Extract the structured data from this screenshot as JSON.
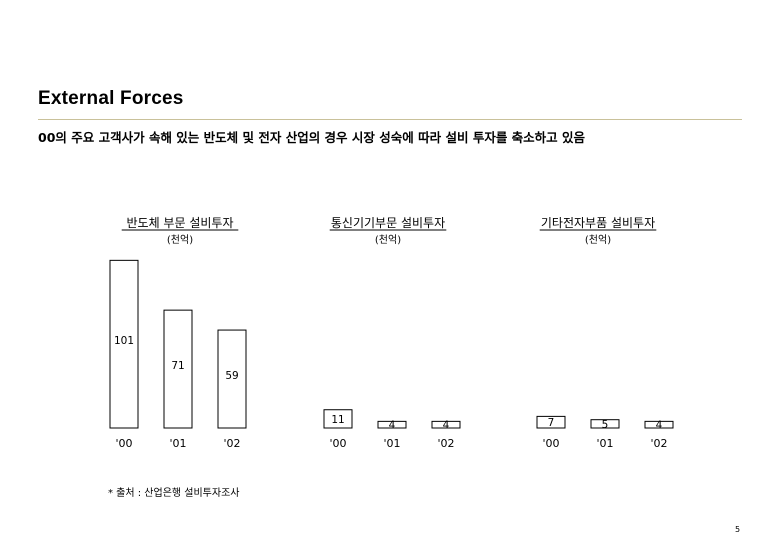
{
  "header": {
    "title": "External Forces",
    "subtitle": "00의 주요 고객사가 속해 있는 반도체 및 전자 산업의 경우 시장 성숙에 따라 설비 투자를 축소하고 있음"
  },
  "footer": {
    "source": "* 출처 : 산업은행 설비투자조사",
    "page_number": "5"
  },
  "chart_data": [
    {
      "type": "bar",
      "title": "반도체 부문 설비투자",
      "subtitle": "(천억)",
      "categories": [
        "'00",
        "'01",
        "'02"
      ],
      "values": [
        101,
        71,
        59
      ],
      "ylim": [
        0,
        101
      ]
    },
    {
      "type": "bar",
      "title": "통신기기부문 설비투자",
      "subtitle": "(천억)",
      "categories": [
        "'00",
        "'01",
        "'02"
      ],
      "values": [
        11,
        4,
        4
      ],
      "ylim": [
        0,
        101
      ]
    },
    {
      "type": "bar",
      "title": "기타전자부품 설비투자",
      "subtitle": "(천억)",
      "categories": [
        "'00",
        "'01",
        "'02"
      ],
      "values": [
        7,
        5,
        4
      ],
      "ylim": [
        0,
        101
      ]
    }
  ]
}
